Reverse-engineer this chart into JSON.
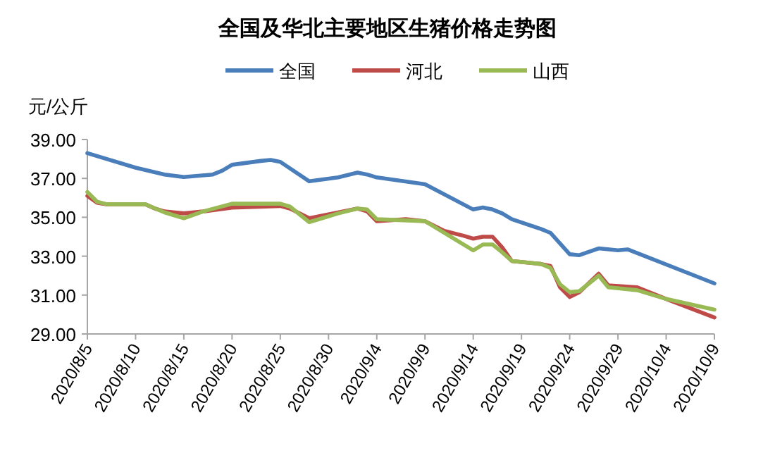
{
  "chart_data": {
    "type": "line",
    "title": "全国及华北主要地区生猪价格走势图",
    "ylabel": "元/公斤",
    "legend": "top",
    "grid": false,
    "marker": "none",
    "line_style": "solid",
    "xlim": [
      "2020-08-05",
      "2020-10-09"
    ],
    "xticks": [
      {
        "value": "2020-08-05",
        "label": "2020/8/5"
      },
      {
        "value": "2020-08-10",
        "label": "2020/8/10"
      },
      {
        "value": "2020-08-15",
        "label": "2020/8/15"
      },
      {
        "value": "2020-08-20",
        "label": "2020/8/20"
      },
      {
        "value": "2020-08-25",
        "label": "2020/8/25"
      },
      {
        "value": "2020-08-30",
        "label": "2020/8/30"
      },
      {
        "value": "2020-09-04",
        "label": "2020/9/4"
      },
      {
        "value": "2020-09-09",
        "label": "2020/9/9"
      },
      {
        "value": "2020-09-14",
        "label": "2020/9/14"
      },
      {
        "value": "2020-09-19",
        "label": "2020/9/19"
      },
      {
        "value": "2020-09-24",
        "label": "2020/9/24"
      },
      {
        "value": "2020-09-29",
        "label": "2020/9/29"
      },
      {
        "value": "2020-10-04",
        "label": "2020/10/4"
      },
      {
        "value": "2020-10-09",
        "label": "2020/10/9"
      }
    ],
    "ylim": [
      29,
      39
    ],
    "yticks": [
      {
        "value": 29,
        "label": "29.00"
      },
      {
        "value": 31,
        "label": "31.00"
      },
      {
        "value": 33,
        "label": "33.00"
      },
      {
        "value": 35,
        "label": "35.00"
      },
      {
        "value": 37,
        "label": "37.00"
      },
      {
        "value": 39,
        "label": "39.00"
      }
    ],
    "series": [
      {
        "name": "全国",
        "color": "#4a7ebb",
        "x": [
          "2020-08-05",
          "2020-08-10",
          "2020-08-13",
          "2020-08-15",
          "2020-08-18",
          "2020-08-19",
          "2020-08-20",
          "2020-08-23",
          "2020-08-24",
          "2020-08-25",
          "2020-08-28",
          "2020-08-31",
          "2020-09-02",
          "2020-09-03",
          "2020-09-04",
          "2020-09-09",
          "2020-09-14",
          "2020-09-15",
          "2020-09-16",
          "2020-09-17",
          "2020-09-18",
          "2020-09-21",
          "2020-09-22",
          "2020-09-24",
          "2020-09-25",
          "2020-09-27",
          "2020-09-29",
          "2020-09-30",
          "2020-10-09"
        ],
        "values": [
          38.3,
          37.55,
          37.2,
          37.07,
          37.2,
          37.4,
          37.7,
          37.9,
          37.95,
          37.85,
          36.85,
          37.05,
          37.3,
          37.2,
          37.05,
          36.7,
          35.4,
          35.5,
          35.4,
          35.2,
          34.9,
          34.4,
          34.2,
          33.1,
          33.05,
          33.4,
          33.3,
          33.35,
          31.6
        ]
      },
      {
        "name": "河北",
        "color": "#be4b48",
        "x": [
          "2020-08-05",
          "2020-08-06",
          "2020-08-07",
          "2020-08-11",
          "2020-08-12",
          "2020-08-13",
          "2020-08-15",
          "2020-08-17",
          "2020-08-20",
          "2020-08-25",
          "2020-08-26",
          "2020-08-28",
          "2020-08-31",
          "2020-09-02",
          "2020-09-03",
          "2020-09-04",
          "2020-09-07",
          "2020-09-09",
          "2020-09-11",
          "2020-09-13",
          "2020-09-14",
          "2020-09-15",
          "2020-09-16",
          "2020-09-17",
          "2020-09-18",
          "2020-09-21",
          "2020-09-22",
          "2020-09-23",
          "2020-09-24",
          "2020-09-25",
          "2020-09-27",
          "2020-09-28",
          "2020-10-01",
          "2020-10-04",
          "2020-10-09"
        ],
        "values": [
          36.1,
          35.75,
          35.67,
          35.67,
          35.45,
          35.3,
          35.2,
          35.3,
          35.5,
          35.58,
          35.45,
          34.95,
          35.25,
          35.45,
          35.3,
          34.8,
          34.9,
          34.8,
          34.3,
          34.05,
          33.9,
          34.0,
          34.0,
          33.45,
          32.75,
          32.6,
          32.5,
          31.4,
          30.9,
          31.15,
          32.1,
          31.5,
          31.4,
          30.8,
          29.85
        ]
      },
      {
        "name": "山西",
        "color": "#98b954",
        "x": [
          "2020-08-05",
          "2020-08-06",
          "2020-08-07",
          "2020-08-11",
          "2020-08-13",
          "2020-08-15",
          "2020-08-17",
          "2020-08-20",
          "2020-08-25",
          "2020-08-26",
          "2020-08-28",
          "2020-08-31",
          "2020-09-02",
          "2020-09-03",
          "2020-09-04",
          "2020-09-09",
          "2020-09-14",
          "2020-09-15",
          "2020-09-16",
          "2020-09-17",
          "2020-09-18",
          "2020-09-21",
          "2020-09-22",
          "2020-09-23",
          "2020-09-24",
          "2020-09-25",
          "2020-09-27",
          "2020-09-28",
          "2020-10-01",
          "2020-10-04",
          "2020-10-09"
        ],
        "values": [
          36.3,
          35.8,
          35.67,
          35.67,
          35.25,
          34.95,
          35.3,
          35.7,
          35.7,
          35.55,
          34.75,
          35.2,
          35.45,
          35.4,
          34.9,
          34.8,
          33.3,
          33.6,
          33.6,
          33.2,
          32.75,
          32.6,
          32.4,
          31.55,
          31.15,
          31.2,
          32.0,
          31.4,
          31.25,
          30.8,
          30.25
        ]
      }
    ]
  }
}
